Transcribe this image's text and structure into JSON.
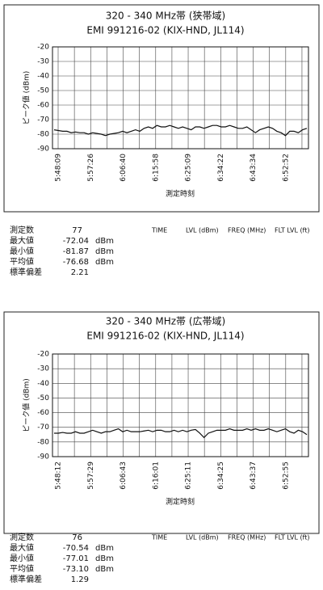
{
  "chart_data": [
    {
      "type": "line",
      "title": "320 - 340 MHz帯 (狭帯域)",
      "subtitle": "EMI 991216-02 (KIX-HND, JL114)",
      "x_label": "測定時刻",
      "y_label": "ピーク値 (dBm)",
      "xtick_labels": [
        "5:48:09",
        "5:57:26",
        "6:06:40",
        "6:15:58",
        "6:25:09",
        "6:34:22",
        "6:43:34",
        "6:52:52"
      ],
      "ylim": [
        -90,
        -20
      ],
      "yticks": [
        -20,
        -30,
        -40,
        -50,
        -60,
        -70,
        -80,
        -90
      ],
      "grid": true,
      "color": "#111111",
      "values": [
        -77,
        -77.5,
        -78,
        -78,
        -79,
        -78.5,
        -79,
        -79,
        -80,
        -79,
        -79.5,
        -80,
        -81,
        -80,
        -79.5,
        -79,
        -78,
        -79,
        -78,
        -77,
        -78,
        -76,
        -75,
        -76,
        -74,
        -75,
        -75,
        -74,
        -75,
        -76,
        -75,
        -76,
        -77,
        -75,
        -75,
        -76,
        -75,
        -74,
        -74,
        -75,
        -75,
        -74,
        -75,
        -76,
        -76,
        -75,
        -77,
        -79,
        -77,
        -76,
        -75,
        -76,
        -78,
        -79,
        -81,
        -78,
        -78,
        -79,
        -77,
        -76
      ],
      "stats": [
        {
          "label": "測定数",
          "value": "77"
        },
        {
          "label": "最大値",
          "value": "-72.04",
          "unit": "dBm"
        },
        {
          "label": "最小値",
          "value": "-81.87",
          "unit": "dBm"
        },
        {
          "label": "平均値",
          "value": "-76.68",
          "unit": "dBm"
        },
        {
          "label": "標準偏差",
          "value": "2.21"
        }
      ],
      "table_header": [
        "TIME",
        "LVL (dBm)",
        "FREQ (MHz)",
        "FLT LVL (ft)"
      ]
    },
    {
      "type": "line",
      "title": "320 - 340 MHz帯 (広帯域)",
      "subtitle": "EMI 991216-02 (KIX-HND, JL114)",
      "x_label": "測定時刻",
      "y_label": "ピーク値 (dBm)",
      "xtick_labels": [
        "5:48:12",
        "5:57:29",
        "6:06:43",
        "6:16:01",
        "6:25:11",
        "6:34:25",
        "6:43:37",
        "6:52:55"
      ],
      "ylim": [
        -90,
        -20
      ],
      "yticks": [
        -20,
        -30,
        -40,
        -50,
        -60,
        -70,
        -80,
        -90
      ],
      "grid": true,
      "color": "#111111",
      "values": [
        -74,
        -74,
        -73.5,
        -74,
        -74,
        -73,
        -74,
        -74,
        -73,
        -72,
        -73,
        -74,
        -73,
        -73,
        -72,
        -71,
        -73,
        -72,
        -73,
        -73,
        -73,
        -72.5,
        -72,
        -73,
        -72,
        -72,
        -73,
        -73,
        -72,
        -73,
        -72,
        -73,
        -72,
        -71.5,
        -74,
        -77,
        -74,
        -73,
        -72,
        -72,
        -72,
        -71,
        -72,
        -72,
        -72,
        -71,
        -72,
        -71,
        -72,
        -72,
        -71,
        -72,
        -73,
        -72,
        -71,
        -73,
        -74,
        -72,
        -73,
        -75
      ],
      "stats": [
        {
          "label": "測定数",
          "value": "76"
        },
        {
          "label": "最大値",
          "value": "-70.54",
          "unit": "dBm"
        },
        {
          "label": "最小値",
          "value": "-77.01",
          "unit": "dBm"
        },
        {
          "label": "平均値",
          "value": "-73.10",
          "unit": "dBm"
        },
        {
          "label": "標準偏差",
          "value": "1.29"
        }
      ],
      "table_header": [
        "TIME",
        "LVL (dBm)",
        "FREQ (MHz)",
        "FLT LVL (ft)"
      ]
    }
  ]
}
